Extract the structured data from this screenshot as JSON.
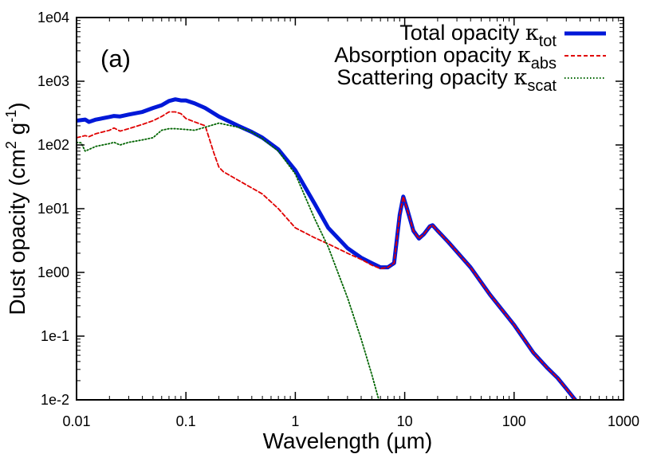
{
  "chart_data": {
    "type": "line",
    "title": "",
    "panel_label": "(a)",
    "xlabel": {
      "prefix": "Wavelength (",
      "unit": "µm",
      "suffix": ")"
    },
    "ylabel": {
      "main": "Dust opacity (cm",
      "sup1": "2",
      "middle": " g",
      "sup2": "-1",
      "suffix": ")"
    },
    "xscale": "log",
    "yscale": "log",
    "xlim": [
      0.01,
      1000
    ],
    "ylim": [
      0.01,
      10000
    ],
    "xticks": [
      0.01,
      0.1,
      1,
      10,
      100,
      1000
    ],
    "yticks": [
      0.01,
      0.1,
      1,
      10,
      100,
      1000,
      10000
    ],
    "xtick_labels": [
      "0.01",
      "0.1",
      "1",
      "10",
      "100",
      "1000"
    ],
    "ytick_labels": [
      "1e-2",
      "1e-1",
      "1e00",
      "1e01",
      "1e02",
      "1e03",
      "1e04"
    ],
    "grid": false,
    "legend_position": "top-right",
    "series": [
      {
        "name_prefix": "Total opacity ",
        "name_symbol": "κ",
        "name_subscript": "tot",
        "color": "#0018d8",
        "style": "solid",
        "thick": true,
        "x": [
          0.01,
          0.012,
          0.013,
          0.015,
          0.02,
          0.022,
          0.025,
          0.03,
          0.04,
          0.05,
          0.06,
          0.07,
          0.08,
          0.09,
          0.1,
          0.12,
          0.15,
          0.2,
          0.3,
          0.4,
          0.5,
          0.7,
          1,
          1.5,
          2,
          3,
          4,
          5,
          6,
          7,
          8,
          9,
          9.7,
          10.5,
          12,
          13.5,
          15,
          17,
          18,
          20,
          25,
          40,
          60,
          100,
          150,
          200,
          250,
          300,
          380
        ],
        "y": [
          240,
          250,
          230,
          250,
          275,
          285,
          280,
          300,
          330,
          380,
          420,
          490,
          520,
          500,
          500,
          450,
          380,
          280,
          200,
          160,
          130,
          85,
          40,
          12,
          5,
          2.4,
          1.7,
          1.4,
          1.2,
          1.2,
          1.4,
          8,
          15.5,
          10,
          4.5,
          3.4,
          4,
          5.3,
          5.5,
          4.5,
          3,
          1.2,
          0.45,
          0.15,
          0.055,
          0.032,
          0.022,
          0.015,
          0.009
        ]
      },
      {
        "name_prefix": "Absorption opacity ",
        "name_symbol": "κ",
        "name_subscript": "abs",
        "color": "#e00000",
        "style": "dashed",
        "thick": false,
        "x": [
          0.01,
          0.012,
          0.013,
          0.015,
          0.02,
          0.022,
          0.025,
          0.03,
          0.04,
          0.05,
          0.06,
          0.07,
          0.08,
          0.09,
          0.1,
          0.12,
          0.15,
          0.18,
          0.2,
          0.22,
          0.3,
          0.5,
          0.7,
          1,
          1.5,
          2,
          3,
          4,
          5,
          6,
          7,
          8,
          9,
          9.7,
          10.5,
          12,
          13.5,
          15,
          17,
          18,
          20,
          25,
          40,
          60,
          100,
          150,
          200,
          250,
          300,
          380
        ],
        "y": [
          130,
          140,
          135,
          150,
          170,
          185,
          165,
          180,
          210,
          240,
          280,
          330,
          330,
          310,
          260,
          230,
          200,
          75,
          45,
          38,
          28,
          17,
          10,
          5,
          3.5,
          2.8,
          2,
          1.6,
          1.3,
          1.15,
          1.2,
          1.4,
          8,
          15.5,
          10,
          4.5,
          3.4,
          4,
          5.3,
          5.5,
          4.5,
          3,
          1.2,
          0.45,
          0.15,
          0.055,
          0.032,
          0.022,
          0.015,
          0.009
        ]
      },
      {
        "name_prefix": "Scattering opacity ",
        "name_symbol": "κ",
        "name_subscript": "scat",
        "color": "#006400",
        "style": "dotted",
        "thick": false,
        "x": [
          0.01,
          0.011,
          0.012,
          0.015,
          0.02,
          0.022,
          0.025,
          0.03,
          0.04,
          0.05,
          0.06,
          0.07,
          0.08,
          0.1,
          0.12,
          0.15,
          0.2,
          0.3,
          0.4,
          0.5,
          0.7,
          1,
          1.5,
          2,
          3,
          4,
          5,
          5.8
        ],
        "y": [
          110,
          108,
          80,
          95,
          105,
          110,
          100,
          110,
          120,
          130,
          170,
          180,
          180,
          175,
          170,
          190,
          220,
          190,
          160,
          125,
          80,
          35,
          7,
          2.5,
          0.4,
          0.09,
          0.025,
          0.01
        ]
      }
    ]
  }
}
